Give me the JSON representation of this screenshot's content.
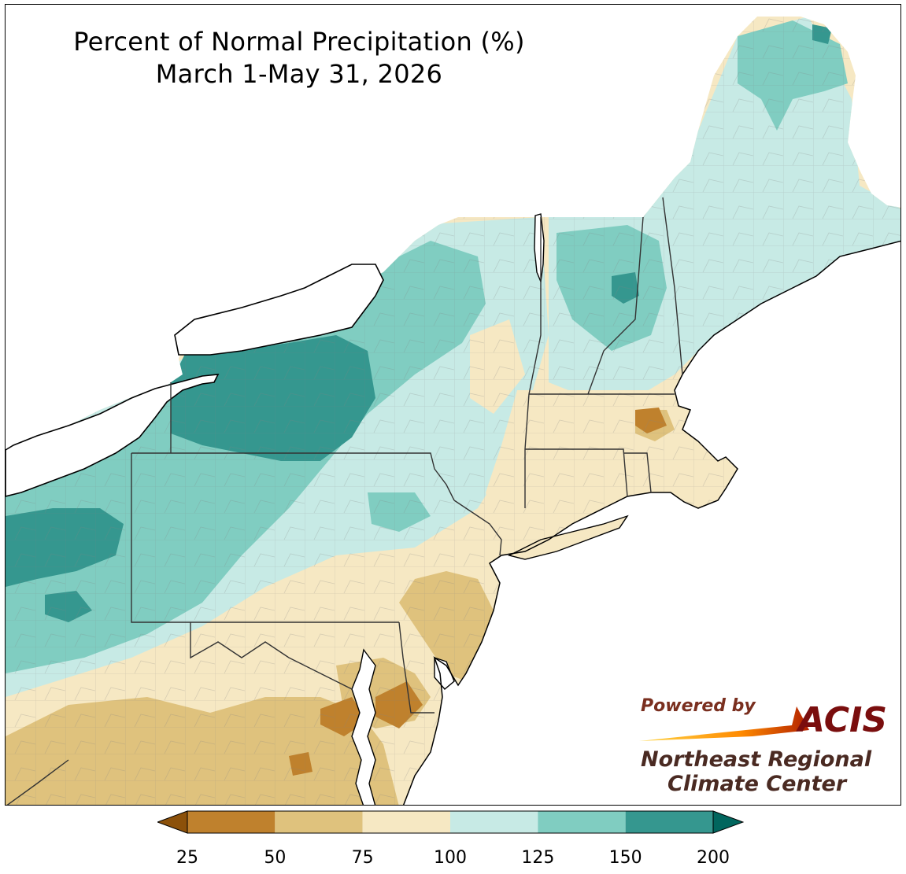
{
  "title": {
    "line1": "Percent of Normal Precipitation (%)",
    "line2": "March 1-May 31, 2026"
  },
  "logo": {
    "powered_by": "Powered by",
    "acis": "ACIS",
    "org_line1": "Northeast Regional",
    "org_line2": "Climate Center"
  },
  "legend": {
    "ticks": [
      "25",
      "50",
      "75",
      "100",
      "125",
      "150",
      "200"
    ],
    "bins": [
      {
        "range": "25-50",
        "color": "#bf812d"
      },
      {
        "range": "50-75",
        "color": "#dfc27d"
      },
      {
        "range": "75-100",
        "color": "#f6e8c3"
      },
      {
        "range": "100-125",
        "color": "#c7eae5"
      },
      {
        "range": "125-150",
        "color": "#80cdc1"
      },
      {
        "range": "150-200",
        "color": "#35978f"
      }
    ],
    "under_color": "#8c510a",
    "over_color": "#01665e"
  },
  "colors": {
    "water": "#ffffff",
    "state_border": "#333333",
    "county_border": "#9a9a9a"
  }
}
